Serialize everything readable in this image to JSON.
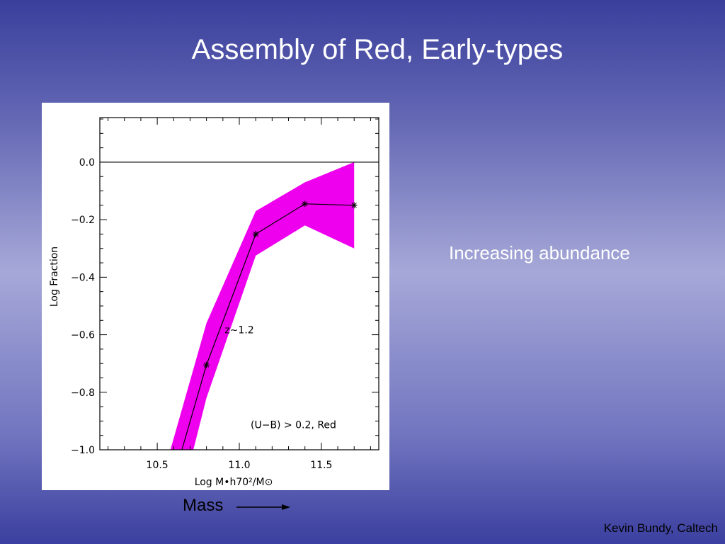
{
  "slide": {
    "title": "Assembly of Red, Early-types",
    "side_note": "Increasing abundance",
    "mass_label": "Mass",
    "credit": "Kevin Bundy, Caltech"
  },
  "colors": {
    "band_fill": "#ee00ee",
    "line": "#000000",
    "slide_text": "#ffffff"
  },
  "chart_data": {
    "type": "line",
    "xlabel": "Log M•h70²/M⊙",
    "ylabel": "Log Fraction",
    "xlim": [
      10.15,
      11.85
    ],
    "ylim": [
      -1.0,
      0.155
    ],
    "x_ticks": [
      10.5,
      11.0,
      11.5
    ],
    "x_tick_labels": [
      "10.5",
      "11.0",
      "11.5"
    ],
    "y_ticks": [
      0.0,
      -0.2,
      -0.4,
      -0.6,
      -0.8,
      -1.0
    ],
    "y_tick_labels": [
      "0.0",
      "−0.2",
      "−0.4",
      "−0.6",
      "−0.8",
      "−1.0"
    ],
    "reference_line_y": 0.0,
    "series": [
      {
        "x": [
          10.65,
          10.8,
          11.1,
          11.4,
          11.7
        ],
        "y": [
          -1.0,
          -0.705,
          -0.25,
          -0.145,
          -0.15
        ],
        "markers": [
          false,
          true,
          true,
          true,
          true
        ]
      }
    ],
    "band": {
      "x": [
        10.58,
        10.8,
        11.1,
        11.4,
        11.7
      ],
      "upper": [
        -1.0,
        -0.56,
        -0.17,
        -0.07,
        0.0
      ],
      "lower": [
        -1.0,
        -0.82,
        -0.325,
        -0.22,
        -0.3
      ],
      "lower_start_x": 10.72
    },
    "annotations": [
      {
        "text": "z∼1.2",
        "x": 11.0,
        "y": -0.595
      },
      {
        "text": "(U−B) > 0.2, Red",
        "x": 11.33,
        "y": -0.925
      }
    ]
  }
}
